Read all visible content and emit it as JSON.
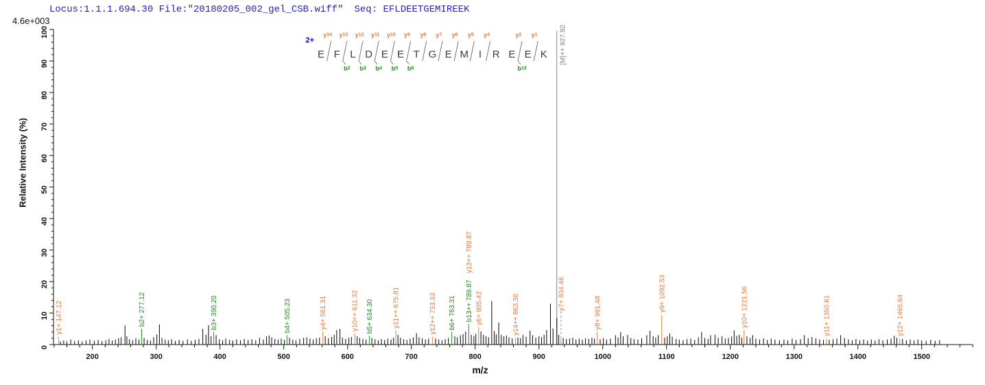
{
  "header": {
    "locus_file": "Locus:1.1.1.694.30 File:\"20180205_002_gel_CSB.wiff\"",
    "seq_prefix": "Seq: ",
    "sequence": "EFLDEETGEMIREEK"
  },
  "axes": {
    "intensity_scale_label": "4.6e+003",
    "ylabel": "Relative  Intensity (%)",
    "xlabel": "m/z",
    "x_ticks": [
      200,
      300,
      400,
      500,
      600,
      700,
      800,
      900,
      1000,
      1100,
      1200,
      1300,
      1400,
      1500
    ],
    "x_minor_step": 20,
    "y_ticks": [
      0,
      10,
      20,
      30,
      40,
      50,
      60,
      70,
      80,
      90,
      100
    ],
    "y_minor_step": 2,
    "xlim": [
      139,
      1580
    ],
    "ylim": [
      0,
      100
    ]
  },
  "colors": {
    "y_ion": "#e1793b",
    "b_ion": "#1f8b1f",
    "peak": "#000000",
    "precursor": "#808080",
    "header_text": "#2424b0",
    "charge": "#0000cc",
    "residue": "#3c3c3c",
    "cut_mark": "#777777",
    "axis": "#111111"
  },
  "peptide_diagram": {
    "charge_label": "2+",
    "residues": [
      "E",
      "F",
      "L",
      "D",
      "E",
      "E",
      "T",
      "G",
      "E",
      "M",
      "I",
      "R",
      "E",
      "E",
      "K"
    ],
    "y_ion_cuts": [
      "y14",
      "y13",
      "y12",
      "y11",
      "y10",
      "y9",
      "y8",
      "y7",
      "y6",
      "y5",
      "y4",
      null,
      "y2",
      "y1"
    ],
    "b_ion_cuts": [
      null,
      "b2",
      "b3",
      "b4",
      "b5",
      "b6",
      null,
      null,
      null,
      null,
      null,
      null,
      "b13",
      null
    ]
  },
  "chart_data": {
    "type": "bar",
    "title": "",
    "xlabel": "m/z",
    "ylabel": "Relative  Intensity (%)",
    "xlim": [
      139,
      1580
    ],
    "ylim": [
      0,
      100
    ],
    "intensity_scale": "4.6e+003",
    "precursor": {
      "label": "[M]++ 927.92",
      "mz": 927.92
    },
    "labeled_peaks": [
      {
        "label": "y1+ 147.12",
        "mz": 147.12,
        "pct": 1.5,
        "ion": "y",
        "dash": true,
        "label_base_pct": 2.5
      },
      {
        "label": "b2+ 277.12",
        "mz": 277.12,
        "pct": 5.0,
        "ion": "b"
      },
      {
        "label": "b3+ 390.20",
        "mz": 390.2,
        "pct": 4.0,
        "ion": "b"
      },
      {
        "label": "b4+ 505.23",
        "mz": 505.23,
        "pct": 3.0,
        "ion": "b"
      },
      {
        "label": "y4+ 561.31",
        "mz": 561.31,
        "pct": 4.0,
        "ion": "y"
      },
      {
        "label": "y10++ 611.32",
        "mz": 611.32,
        "pct": 3.5,
        "ion": "y"
      },
      {
        "label": "b5+ 634.30",
        "mz": 634.3,
        "pct": 2.8,
        "ion": "b"
      },
      {
        "label": "y11++ 675.81",
        "mz": 675.81,
        "pct": 4.5,
        "ion": "y"
      },
      {
        "label": "y12++ 733.33",
        "mz": 733.33,
        "pct": 2.5,
        "ion": "y"
      },
      {
        "label": "b6+ 763.31",
        "mz": 763.31,
        "pct": 4.0,
        "ion": "b"
      },
      {
        "label": "b13++ 789.87",
        "mz": 789.87,
        "pct": 6.5,
        "ion": "b"
      },
      {
        "label": "y13++ 789.87",
        "mz": 789.87,
        "pct": 6.5,
        "ion": "y",
        "label_base_pct": 22,
        "no_stem": true
      },
      {
        "label": "y6+ 805.42",
        "mz": 805.42,
        "pct": 5.5,
        "ion": "y"
      },
      {
        "label": "y14++ 863.36",
        "mz": 863.36,
        "pct": 2.2,
        "ion": "y"
      },
      {
        "label": "y7+ 934.46",
        "mz": 934.46,
        "pct": 1.8,
        "ion": "y",
        "dash": true,
        "label_base_pct": 10
      },
      {
        "label": "y8+ 991.48",
        "mz": 991.48,
        "pct": 4.0,
        "ion": "y"
      },
      {
        "label": "y9+ 1092.53",
        "mz": 1092.53,
        "pct": 9.5,
        "ion": "y"
      },
      {
        "label": "y10+ 1221.56",
        "mz": 1221.56,
        "pct": 4.6,
        "ion": "y"
      },
      {
        "label": "y11+ 1350.61",
        "mz": 1350.61,
        "pct": 2.0,
        "ion": "y"
      },
      {
        "label": "y12+ 1465.64",
        "mz": 1465.64,
        "pct": 2.0,
        "ion": "y"
      }
    ],
    "unlabeled_peaks": [
      [
        150,
        1.0
      ],
      [
        155,
        1.3
      ],
      [
        160,
        1.0
      ],
      [
        166,
        1.6
      ],
      [
        172,
        1.1
      ],
      [
        178,
        1.4
      ],
      [
        184,
        1.0
      ],
      [
        190,
        1.3
      ],
      [
        196,
        1.6
      ],
      [
        203,
        1.2
      ],
      [
        209,
        1.5
      ],
      [
        215,
        1.1
      ],
      [
        221,
        1.4
      ],
      [
        226,
        1.8
      ],
      [
        231,
        1.3
      ],
      [
        236,
        1.6
      ],
      [
        241,
        2.0
      ],
      [
        245,
        2.3
      ],
      [
        251,
        6.0
      ],
      [
        254,
        2.6
      ],
      [
        258,
        1.7
      ],
      [
        263,
        1.4
      ],
      [
        268,
        2.0
      ],
      [
        273,
        1.6
      ],
      [
        281,
        2.1
      ],
      [
        286,
        1.5
      ],
      [
        291,
        1.3
      ],
      [
        296,
        2.4
      ],
      [
        301,
        3.2
      ],
      [
        305,
        6.4
      ],
      [
        309,
        2.1
      ],
      [
        314,
        1.6
      ],
      [
        319,
        1.4
      ],
      [
        324,
        1.7
      ],
      [
        330,
        1.2
      ],
      [
        336,
        1.5
      ],
      [
        342,
        1.2
      ],
      [
        349,
        1.6
      ],
      [
        355,
        1.2
      ],
      [
        361,
        1.5
      ],
      [
        367,
        1.8
      ],
      [
        373,
        5.0
      ],
      [
        378,
        3.1
      ],
      [
        382,
        6.1
      ],
      [
        386,
        2.6
      ],
      [
        394,
        3.0
      ],
      [
        399,
        1.7
      ],
      [
        404,
        1.4
      ],
      [
        409,
        1.9
      ],
      [
        415,
        1.5
      ],
      [
        420,
        1.3
      ],
      [
        426,
        1.7
      ],
      [
        432,
        1.4
      ],
      [
        438,
        1.8
      ],
      [
        444,
        1.5
      ],
      [
        450,
        1.7
      ],
      [
        456,
        1.4
      ],
      [
        462,
        2.1
      ],
      [
        468,
        1.6
      ],
      [
        473,
        2.6
      ],
      [
        477,
        2.9
      ],
      [
        481,
        2.3
      ],
      [
        486,
        1.8
      ],
      [
        491,
        1.6
      ],
      [
        496,
        1.9
      ],
      [
        501,
        1.5
      ],
      [
        509,
        2.1
      ],
      [
        514,
        1.6
      ],
      [
        519,
        1.4
      ],
      [
        525,
        1.8
      ],
      [
        531,
        2.1
      ],
      [
        536,
        2.3
      ],
      [
        541,
        1.9
      ],
      [
        546,
        1.6
      ],
      [
        551,
        2.0
      ],
      [
        556,
        2.2
      ],
      [
        565,
        2.6
      ],
      [
        570,
        2.0
      ],
      [
        575,
        2.4
      ],
      [
        579,
        3.1
      ],
      [
        583,
        4.6
      ],
      [
        588,
        5.0
      ],
      [
        592,
        2.2
      ],
      [
        597,
        1.8
      ],
      [
        602,
        2.1
      ],
      [
        606,
        2.4
      ],
      [
        615,
        2.6
      ],
      [
        619,
        2.1
      ],
      [
        624,
        1.8
      ],
      [
        629,
        1.6
      ],
      [
        638,
        2.1
      ],
      [
        643,
        1.7
      ],
      [
        648,
        1.4
      ],
      [
        653,
        1.8
      ],
      [
        658,
        1.5
      ],
      [
        663,
        1.9
      ],
      [
        668,
        1.6
      ],
      [
        672,
        2.2
      ],
      [
        679,
        3.1
      ],
      [
        683,
        2.2
      ],
      [
        688,
        1.7
      ],
      [
        693,
        1.5
      ],
      [
        698,
        1.9
      ],
      [
        703,
        2.3
      ],
      [
        708,
        3.6
      ],
      [
        712,
        2.3
      ],
      [
        717,
        2.0
      ],
      [
        722,
        1.6
      ],
      [
        727,
        1.9
      ],
      [
        738,
        1.9
      ],
      [
        743,
        1.6
      ],
      [
        748,
        1.4
      ],
      [
        753,
        1.8
      ],
      [
        758,
        2.1
      ],
      [
        768,
        2.6
      ],
      [
        772,
        2.3
      ],
      [
        777,
        3.0
      ],
      [
        781,
        3.3
      ],
      [
        785,
        4.1
      ],
      [
        794,
        3.1
      ],
      [
        798,
        2.7
      ],
      [
        801,
        3.4
      ],
      [
        809,
        4.2
      ],
      [
        813,
        3.1
      ],
      [
        817,
        2.6
      ],
      [
        821,
        2.3
      ],
      [
        826,
        13.8
      ],
      [
        830,
        4.3
      ],
      [
        833,
        3.2
      ],
      [
        837,
        7.0
      ],
      [
        841,
        3.1
      ],
      [
        845,
        2.6
      ],
      [
        849,
        2.9
      ],
      [
        853,
        2.3
      ],
      [
        858,
        2.0
      ],
      [
        867,
        2.2
      ],
      [
        871,
        2.0
      ],
      [
        875,
        3.1
      ],
      [
        880,
        2.5
      ],
      [
        886,
        4.4
      ],
      [
        890,
        3.0
      ],
      [
        895,
        2.2
      ],
      [
        900,
        2.6
      ],
      [
        904,
        2.4
      ],
      [
        908,
        3.1
      ],
      [
        912,
        4.6
      ],
      [
        918,
        13.0
      ],
      [
        922,
        5.1
      ],
      [
        928,
        8.4
      ],
      [
        931,
        3.1
      ],
      [
        938,
        2.1
      ],
      [
        943,
        1.8
      ],
      [
        948,
        1.9
      ],
      [
        953,
        2.2
      ],
      [
        958,
        1.6
      ],
      [
        963,
        1.9
      ],
      [
        968,
        1.5
      ],
      [
        973,
        2.0
      ],
      [
        978,
        1.8
      ],
      [
        983,
        2.2
      ],
      [
        987,
        1.9
      ],
      [
        996,
        1.7
      ],
      [
        1001,
        2.0
      ],
      [
        1006,
        1.6
      ],
      [
        1012,
        1.9
      ],
      [
        1020,
        3.0
      ],
      [
        1024,
        2.2
      ],
      [
        1028,
        4.0
      ],
      [
        1032,
        2.6
      ],
      [
        1039,
        3.1
      ],
      [
        1044,
        2.1
      ],
      [
        1049,
        1.8
      ],
      [
        1055,
        1.6
      ],
      [
        1061,
        2.0
      ],
      [
        1069,
        3.0
      ],
      [
        1074,
        4.4
      ],
      [
        1079,
        2.6
      ],
      [
        1083,
        2.2
      ],
      [
        1087,
        3.0
      ],
      [
        1097,
        2.2
      ],
      [
        1101,
        2.6
      ],
      [
        1105,
        3.5
      ],
      [
        1109,
        2.5
      ],
      [
        1115,
        1.8
      ],
      [
        1120,
        1.6
      ],
      [
        1126,
        1.4
      ],
      [
        1132,
        1.7
      ],
      [
        1138,
        1.9
      ],
      [
        1144,
        1.5
      ],
      [
        1150,
        2.3
      ],
      [
        1155,
        4.0
      ],
      [
        1160,
        2.1
      ],
      [
        1165,
        1.8
      ],
      [
        1169,
        3.0
      ],
      [
        1176,
        3.1
      ],
      [
        1181,
        2.2
      ],
      [
        1187,
        2.6
      ],
      [
        1192,
        1.9
      ],
      [
        1197,
        2.1
      ],
      [
        1202,
        2.6
      ],
      [
        1206,
        4.5
      ],
      [
        1210,
        2.8
      ],
      [
        1214,
        3.1
      ],
      [
        1218,
        2.2
      ],
      [
        1226,
        2.6
      ],
      [
        1231,
        2.1
      ],
      [
        1235,
        3.0
      ],
      [
        1240,
        1.9
      ],
      [
        1246,
        1.6
      ],
      [
        1252,
        2.0
      ],
      [
        1258,
        1.5
      ],
      [
        1264,
        1.9
      ],
      [
        1270,
        1.6
      ],
      [
        1277,
        1.4
      ],
      [
        1284,
        1.6
      ],
      [
        1290,
        1.4
      ],
      [
        1297,
        1.9
      ],
      [
        1303,
        1.5
      ],
      [
        1310,
        1.7
      ],
      [
        1316,
        3.0
      ],
      [
        1322,
        2.0
      ],
      [
        1328,
        2.4
      ],
      [
        1334,
        2.0
      ],
      [
        1340,
        1.7
      ],
      [
        1346,
        1.5
      ],
      [
        1355,
        1.5
      ],
      [
        1361,
        1.7
      ],
      [
        1367,
        1.9
      ],
      [
        1373,
        3.0
      ],
      [
        1379,
        2.1
      ],
      [
        1385,
        1.7
      ],
      [
        1391,
        1.4
      ],
      [
        1397,
        1.8
      ],
      [
        1403,
        1.4
      ],
      [
        1409,
        1.6
      ],
      [
        1415,
        1.3
      ],
      [
        1421,
        1.6
      ],
      [
        1427,
        1.3
      ],
      [
        1433,
        1.7
      ],
      [
        1439,
        1.4
      ],
      [
        1446,
        1.6
      ],
      [
        1452,
        1.9
      ],
      [
        1457,
        2.8
      ],
      [
        1461,
        2.1
      ],
      [
        1470,
        1.8
      ],
      [
        1476,
        1.4
      ],
      [
        1482,
        1.6
      ],
      [
        1488,
        1.3
      ],
      [
        1494,
        1.6
      ],
      [
        1500,
        1.3
      ],
      [
        1507,
        1.2
      ],
      [
        1514,
        1.5
      ],
      [
        1521,
        1.2
      ],
      [
        1528,
        1.4
      ]
    ]
  }
}
